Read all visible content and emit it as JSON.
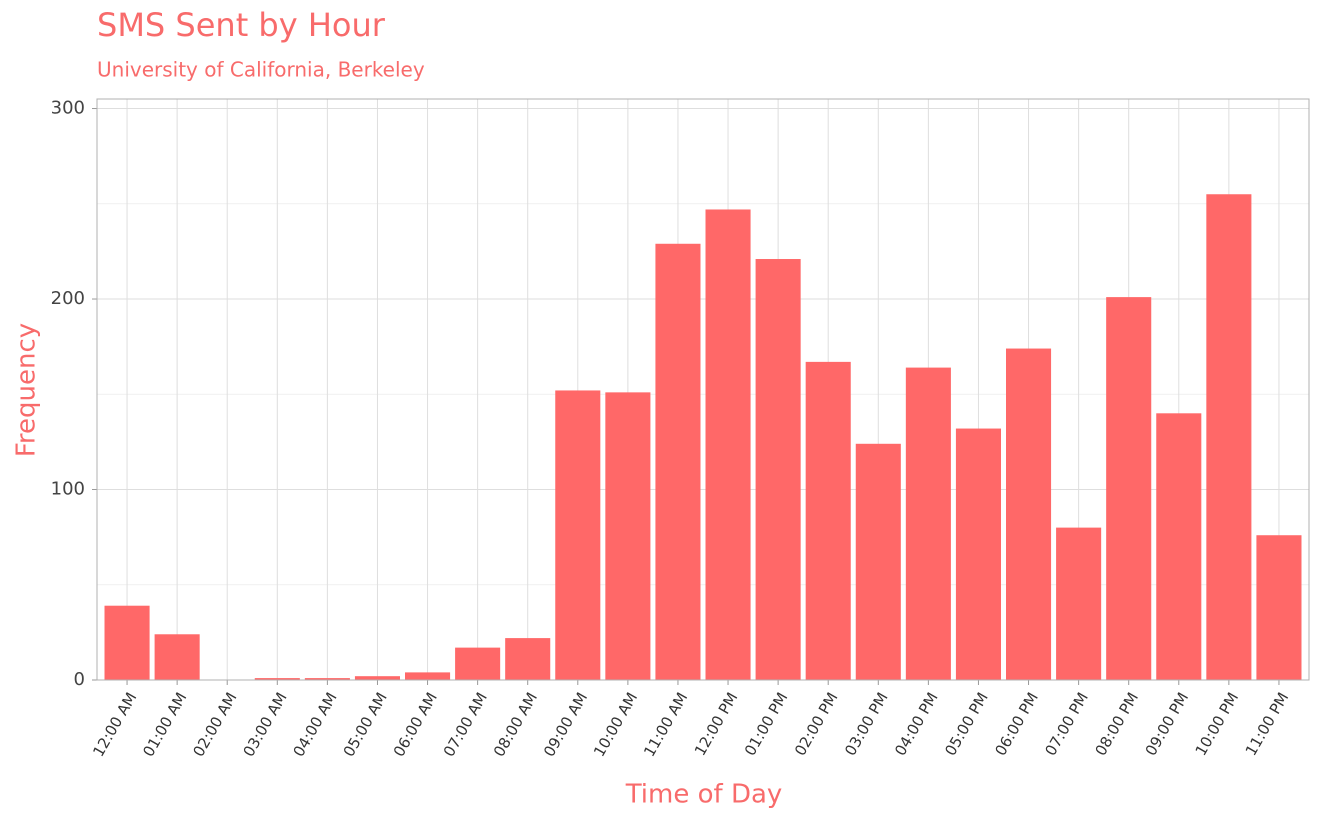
{
  "chart_data": {
    "type": "bar",
    "title": "SMS Sent by Hour",
    "subtitle": "University of California, Berkeley",
    "x_label": "Time of Day",
    "y_label": "Frequency",
    "categories": [
      "12:00 AM",
      "01:00 AM",
      "02:00 AM",
      "03:00 AM",
      "04:00 AM",
      "05:00 AM",
      "06:00 AM",
      "07:00 AM",
      "08:00 AM",
      "09:00 AM",
      "10:00 AM",
      "11:00 AM",
      "12:00 PM",
      "01:00 PM",
      "02:00 PM",
      "03:00 PM",
      "04:00 PM",
      "05:00 PM",
      "06:00 PM",
      "07:00 PM",
      "08:00 PM",
      "09:00 PM",
      "10:00 PM",
      "11:00 PM"
    ],
    "values": [
      39,
      24,
      0,
      1,
      1,
      2,
      4,
      17,
      22,
      152,
      151,
      229,
      247,
      221,
      167,
      124,
      164,
      132,
      174,
      80,
      201,
      140,
      255,
      76
    ],
    "color": "#ff6868",
    "text_color": "#f86b6b",
    "ylim": [
      0,
      305
    ],
    "yticks": [
      0,
      100,
      200,
      300
    ],
    "minor_yticks": [
      50,
      150,
      250
    ],
    "grid": true
  }
}
